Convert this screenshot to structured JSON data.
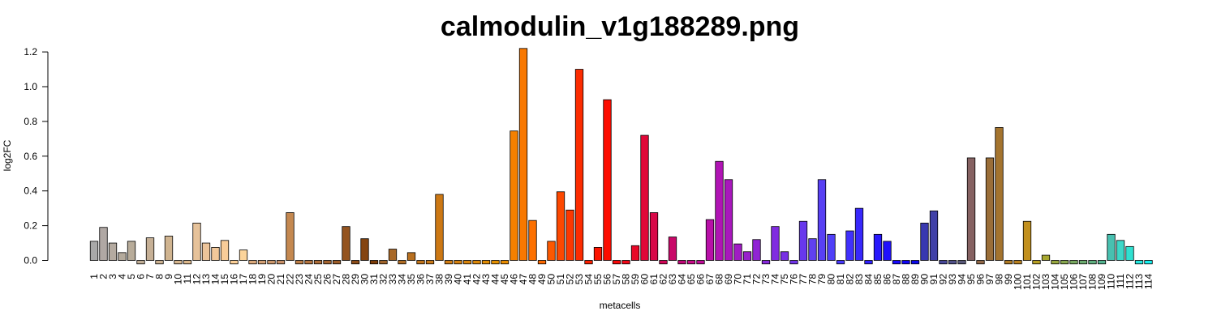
{
  "chart_data": {
    "type": "bar",
    "title": "calmodulin_v1g188289.png",
    "xlabel": "metacells",
    "ylabel": "log2FC",
    "ylim": [
      -0.02,
      1.22
    ],
    "yticks": [
      "0.0",
      "0.2",
      "0.4",
      "0.6",
      "0.8",
      "1.0",
      "1.2"
    ],
    "categories": [
      "1",
      "2",
      "3",
      "4",
      "5",
      "6",
      "7",
      "8",
      "9",
      "10",
      "11",
      "12",
      "13",
      "14",
      "15",
      "16",
      "17",
      "18",
      "19",
      "20",
      "21",
      "22",
      "23",
      "24",
      "25",
      "26",
      "27",
      "28",
      "29",
      "30",
      "31",
      "32",
      "33",
      "34",
      "35",
      "36",
      "37",
      "38",
      "39",
      "40",
      "41",
      "42",
      "43",
      "44",
      "45",
      "46",
      "47",
      "48",
      "49",
      "50",
      "51",
      "52",
      "53",
      "54",
      "55",
      "56",
      "57",
      "58",
      "59",
      "60",
      "61",
      "62",
      "63",
      "64",
      "65",
      "66",
      "67",
      "68",
      "69",
      "70",
      "71",
      "72",
      "73",
      "74",
      "75",
      "76",
      "77",
      "78",
      "79",
      "80",
      "81",
      "82",
      "83",
      "84",
      "85",
      "86",
      "87",
      "88",
      "89",
      "90",
      "91",
      "92",
      "93",
      "94",
      "95",
      "96",
      "97",
      "98",
      "99",
      "100",
      "101",
      "102",
      "103",
      "104",
      "105",
      "106",
      "107",
      "108",
      "109",
      "110",
      "111",
      "112",
      "113",
      "114"
    ],
    "values": [
      0.11,
      0.19,
      0.1,
      0.045,
      0.11,
      -0.02,
      0.13,
      -0.02,
      0.14,
      -0.02,
      -0.02,
      0.215,
      0.1,
      0.075,
      0.115,
      -0.02,
      0.06,
      -0.02,
      -0.02,
      -0.02,
      -0.02,
      0.275,
      -0.02,
      -0.02,
      -0.02,
      -0.02,
      -0.02,
      0.195,
      -0.02,
      0.125,
      -0.02,
      -0.02,
      0.065,
      -0.02,
      0.045,
      -0.02,
      -0.02,
      0.38,
      -0.02,
      -0.02,
      -0.02,
      -0.02,
      -0.02,
      -0.02,
      -0.02,
      0.745,
      1.22,
      0.23,
      -0.02,
      0.11,
      0.395,
      0.29,
      1.1,
      -0.02,
      0.075,
      0.925,
      -0.02,
      -0.02,
      0.085,
      0.72,
      0.275,
      -0.02,
      0.135,
      -0.02,
      -0.02,
      -0.02,
      0.235,
      0.57,
      0.465,
      0.095,
      0.05,
      0.12,
      -0.02,
      0.195,
      0.05,
      -0.02,
      0.225,
      0.125,
      0.465,
      0.15,
      -0.02,
      0.17,
      0.3,
      -0.02,
      0.15,
      0.11,
      -0.02,
      -0.02,
      -0.02,
      0.215,
      0.285,
      -0.02,
      -0.02,
      -0.02,
      0.59,
      -0.02,
      0.59,
      0.765,
      -0.02,
      -0.02,
      0.225,
      -0.02,
      0.03,
      -0.02,
      -0.02,
      -0.02,
      -0.02,
      -0.02,
      -0.02,
      0.15,
      0.115,
      0.08,
      -0.02,
      -0.02
    ],
    "colors": [
      "#a8a8a8",
      "#b0a8a4",
      "#b4aaa0",
      "#b4aa9c",
      "#b8ac9a",
      "#c0ae96",
      "#c6b096",
      "#ccb292",
      "#d0b490",
      "#d6b68e",
      "#dcb88c",
      "#e6c29a",
      "#ecc49a",
      "#f2c89a",
      "#f8cc98",
      "#fcd098",
      "#fcd49a",
      "#dcaa7c",
      "#d4a074",
      "#cc986c",
      "#c89068",
      "#c48850",
      "#bc7e48",
      "#b47440",
      "#ac6c38",
      "#a46430",
      "#9c5c28",
      "#945420",
      "#8c4c18",
      "#844410",
      "#7c3c08",
      "#a0642c",
      "#a86828",
      "#b06c24",
      "#b87020",
      "#c0741c",
      "#c87818",
      "#cc7814",
      "#d07c14",
      "#d48010",
      "#d8840c",
      "#dc8808",
      "#e08c04",
      "#e49000",
      "#e88c00",
      "#f48000",
      "#f87800",
      "#fc7000",
      "#fc6800",
      "#fc5800",
      "#fc4800",
      "#fc3800",
      "#fc2c00",
      "#fc2000",
      "#fc1400",
      "#fc0c00",
      "#f80808",
      "#f00818",
      "#e80828",
      "#e00838",
      "#d80848",
      "#d00858",
      "#c80868",
      "#c00878",
      "#c80c88",
      "#c00c98",
      "#b810a8",
      "#b014b4",
      "#a818bc",
      "#a01cc4",
      "#9820cc",
      "#9024d4",
      "#8828dc",
      "#802ce0",
      "#7830e4",
      "#7034e8",
      "#6838ec",
      "#6040f0",
      "#5840f4",
      "#5040f8",
      "#4838fc",
      "#4030fc",
      "#3828fc",
      "#3020fc",
      "#2818fc",
      "#2010fc",
      "#1808fc",
      "#1004f4",
      "#0c08e8",
      "#3838b0",
      "#4040a8",
      "#484898",
      "#505088",
      "#585878",
      "#866262",
      "#906848",
      "#9a6e38",
      "#a4742e",
      "#ae7a24",
      "#b88020",
      "#c2901e",
      "#b8a024",
      "#a8a830",
      "#98a840",
      "#88a850",
      "#78a860",
      "#6cac70",
      "#60b080",
      "#54b490",
      "#48c0b0",
      "#3cd8c8",
      "#30e0d0",
      "#24e8e0",
      "#18f0f0"
    ]
  }
}
